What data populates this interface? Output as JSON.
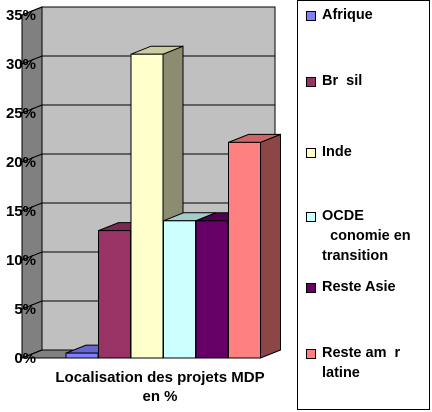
{
  "chart_data": {
    "type": "bar",
    "categories": [
      "Afrique",
      "Br  sil",
      "Inde",
      "OCDE\n  conomie en\ntransition",
      "Reste Asie",
      "Reste am  r\nlatine"
    ],
    "values": [
      0.5,
      13,
      31,
      14,
      14,
      22
    ],
    "colors": [
      "#8080ff",
      "#993366",
      "#ffffcc",
      "#ccffff",
      "#660066",
      "#ff8080"
    ],
    "ytick_labels": [
      "0%",
      "5%",
      "10%",
      "15%",
      "20%",
      "25%",
      "30%",
      "35%"
    ],
    "ylim": [
      0,
      35
    ],
    "xlabel": "Localisation des projets MDP\nen %",
    "ylabel": "",
    "grid": true,
    "legend_position": "right"
  }
}
